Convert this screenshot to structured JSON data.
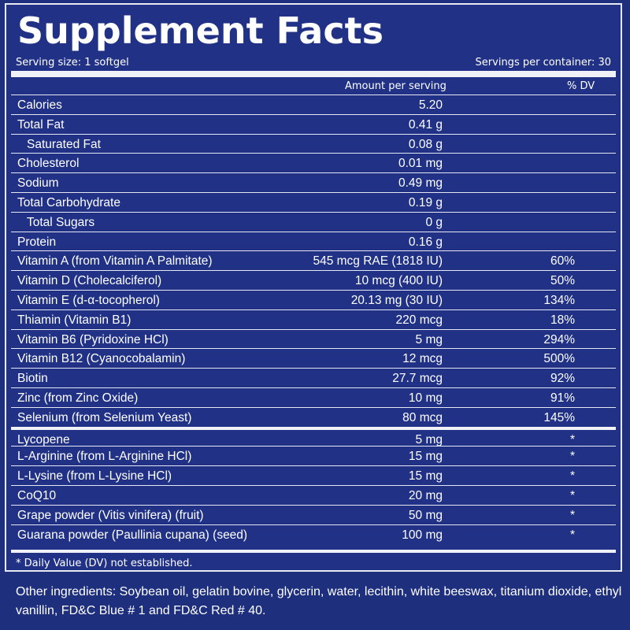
{
  "title": "Supplement Facts",
  "serving_size": "Serving size: 1 softgel",
  "servings_per_container": "Servings per container: 30",
  "headers": {
    "amount": "Amount per serving",
    "dv": "% DV"
  },
  "rows": [
    {
      "name": "Calories",
      "amount": "5.20",
      "dv": ""
    },
    {
      "name": "Total Fat",
      "amount": "0.41 g",
      "dv": ""
    },
    {
      "name": "Saturated Fat",
      "amount": "0.08 g",
      "dv": ""
    },
    {
      "name": "Cholesterol",
      "amount": "0.01 mg",
      "dv": ""
    },
    {
      "name": "Sodium",
      "amount": "0.49 mg",
      "dv": ""
    },
    {
      "name": "Total Carbohydrate",
      "amount": "0.19 g",
      "dv": ""
    },
    {
      "name": "Total Sugars",
      "amount": "0 g",
      "dv": ""
    },
    {
      "name": "Protein",
      "amount": "0.16 g",
      "dv": ""
    },
    {
      "name": "Vitamin A (from Vitamin A Palmitate)",
      "amount": "545 mcg RAE (1818 IU)",
      "dv": "60%"
    },
    {
      "name": "Vitamin D (Cholecalciferol)",
      "amount": "10 mcg (400 IU)",
      "dv": "50%"
    },
    {
      "name": "Vitamin E (d-α-tocopherol)",
      "amount": "20.13 mg (30 IU)",
      "dv": "134%"
    },
    {
      "name": "Thiamin (Vitamin B1)",
      "amount": "220 mcg",
      "dv": "18%"
    },
    {
      "name": "Vitamin B6 (Pyridoxine HCl)",
      "amount": "5 mg",
      "dv": "294%"
    },
    {
      "name": "Vitamin B12 (Cyanocobalamin)",
      "amount": "12 mcg",
      "dv": "500%"
    },
    {
      "name": "Biotin",
      "amount": "27.7 mcg",
      "dv": "92%"
    },
    {
      "name": "Zinc (from Zinc Oxide)",
      "amount": "10 mg",
      "dv": "91%"
    },
    {
      "name": "Selenium (from Selenium Yeast)",
      "amount": "80 mcg",
      "dv": "145%"
    },
    {
      "name": "Lycopene",
      "amount": "5 mg",
      "dv": "*"
    },
    {
      "name": "L-Arginine (from L-Arginine HCl)",
      "amount": "15 mg",
      "dv": "*"
    },
    {
      "name": "L-Lysine (from L-Lysine HCl)",
      "amount": "15 mg",
      "dv": "*"
    },
    {
      "name": "CoQ10",
      "amount": "20 mg",
      "dv": "*"
    },
    {
      "name": "Grape powder (Vitis vinifera) (fruit)",
      "amount": "50 mg",
      "dv": "*"
    },
    {
      "name": "Guarana powder (Paullinia cupana) (seed)",
      "amount": "100 mg",
      "dv": "*"
    }
  ],
  "footnote": "* Daily Value (DV) not established.",
  "other_ingredients": "Other ingredients: Soybean oil, gelatin bovine, glycerin, water, lecithin, white beeswax, titanium dioxide, ethyl vanillin, FD&C Blue # 1 and FD&C Red # 40.",
  "colors": {
    "background": "#1e2f7e",
    "text": "#ffffff",
    "rules": "#f0f2f8"
  }
}
